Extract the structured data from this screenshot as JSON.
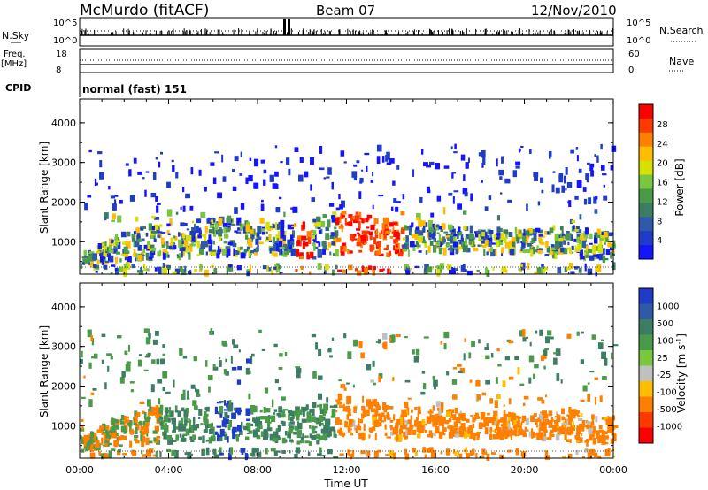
{
  "header": {
    "station": "McMurdo (fitACF)",
    "beam": "Beam 07",
    "date": "12/Nov/2010"
  },
  "top_panels": {
    "nsky_label": "N.Sky",
    "nsky_ticks": [
      "10^5",
      "10^0"
    ],
    "nsearch_label": "N.Search",
    "nsearch_ticks": [
      "10^5",
      "10^0"
    ],
    "freq_label_1": "Freq.",
    "freq_label_2": "[MHz]",
    "freq_ticks": [
      "18",
      "8"
    ],
    "nave_label": "Nave",
    "nave_ticks": [
      "60",
      "0"
    ],
    "cpid_label": "CPID",
    "cpid_value": "normal (fast) 151"
  },
  "chart_data": [
    {
      "type": "heatmap",
      "title": "",
      "ylabel": "Slant Range [km]",
      "xlabel": "",
      "ylim": [
        180,
        4600
      ],
      "y_ticks": [
        1000,
        2000,
        3000,
        4000
      ],
      "x_ticks": [
        "00:00",
        "04:00",
        "08:00",
        "12:00",
        "16:00",
        "20:00",
        "00:00"
      ],
      "colorbar": {
        "label": "Power [dB]",
        "ticks": [
          "28",
          "24",
          "20",
          "16",
          "12",
          "8",
          "4"
        ],
        "colors": [
          "#ff0000",
          "#ff3a00",
          "#ff7f00",
          "#ffbd00",
          "#d8e000",
          "#79c63f",
          "#4a9a4a",
          "#3d7d63",
          "#2e5aa8",
          "#1e3cc8",
          "#1414ff"
        ]
      },
      "main_echo_band": [
        {
          "t": 0.1,
          "lo": 400,
          "hi": 700
        },
        {
          "t": 2.0,
          "lo": 500,
          "hi": 1300
        },
        {
          "t": 4.0,
          "lo": 600,
          "hi": 1500
        },
        {
          "t": 6.5,
          "lo": 600,
          "hi": 1600
        },
        {
          "t": 8.0,
          "lo": 700,
          "hi": 1400
        },
        {
          "t": 10.0,
          "lo": 500,
          "hi": 1500
        },
        {
          "t": 12.0,
          "lo": 700,
          "hi": 1800
        },
        {
          "t": 14.0,
          "lo": 650,
          "hi": 1500
        },
        {
          "t": 16.0,
          "lo": 750,
          "hi": 1450
        },
        {
          "t": 18.0,
          "lo": 700,
          "hi": 1300
        },
        {
          "t": 20.0,
          "lo": 700,
          "hi": 1300
        },
        {
          "t": 22.0,
          "lo": 600,
          "hi": 1400
        },
        {
          "t": 23.9,
          "lo": 500,
          "hi": 1200
        }
      ]
    },
    {
      "type": "heatmap",
      "title": "",
      "ylabel": "Slant Range [km]",
      "xlabel": "Time UT",
      "ylim": [
        180,
        4600
      ],
      "y_ticks": [
        1000,
        2000,
        3000,
        4000
      ],
      "x_ticks": [
        "00:00",
        "04:00",
        "08:00",
        "12:00",
        "16:00",
        "20:00",
        "00:00"
      ],
      "colorbar": {
        "label": "Velocity [m s^-1]",
        "ticks": [
          "1000",
          "500",
          "100",
          "25",
          "-25",
          "-100",
          "-500",
          "-1000"
        ],
        "colors": [
          "#1e3cc8",
          "#2e5aa8",
          "#3d7d63",
          "#4a9a4a",
          "#79c63f",
          "#c0c0c0",
          "#ffbd00",
          "#ff7f00",
          "#ff3a00",
          "#ff0000"
        ]
      },
      "velocity_regime": [
        {
          "from": 0,
          "to": 3.5,
          "sign": "mixed"
        },
        {
          "from": 3.5,
          "to": 11.5,
          "sign": "positive"
        },
        {
          "from": 11.5,
          "to": 24,
          "sign": "negative"
        }
      ]
    }
  ],
  "colors": {
    "axis": "#000000",
    "background": "#ffffff"
  }
}
